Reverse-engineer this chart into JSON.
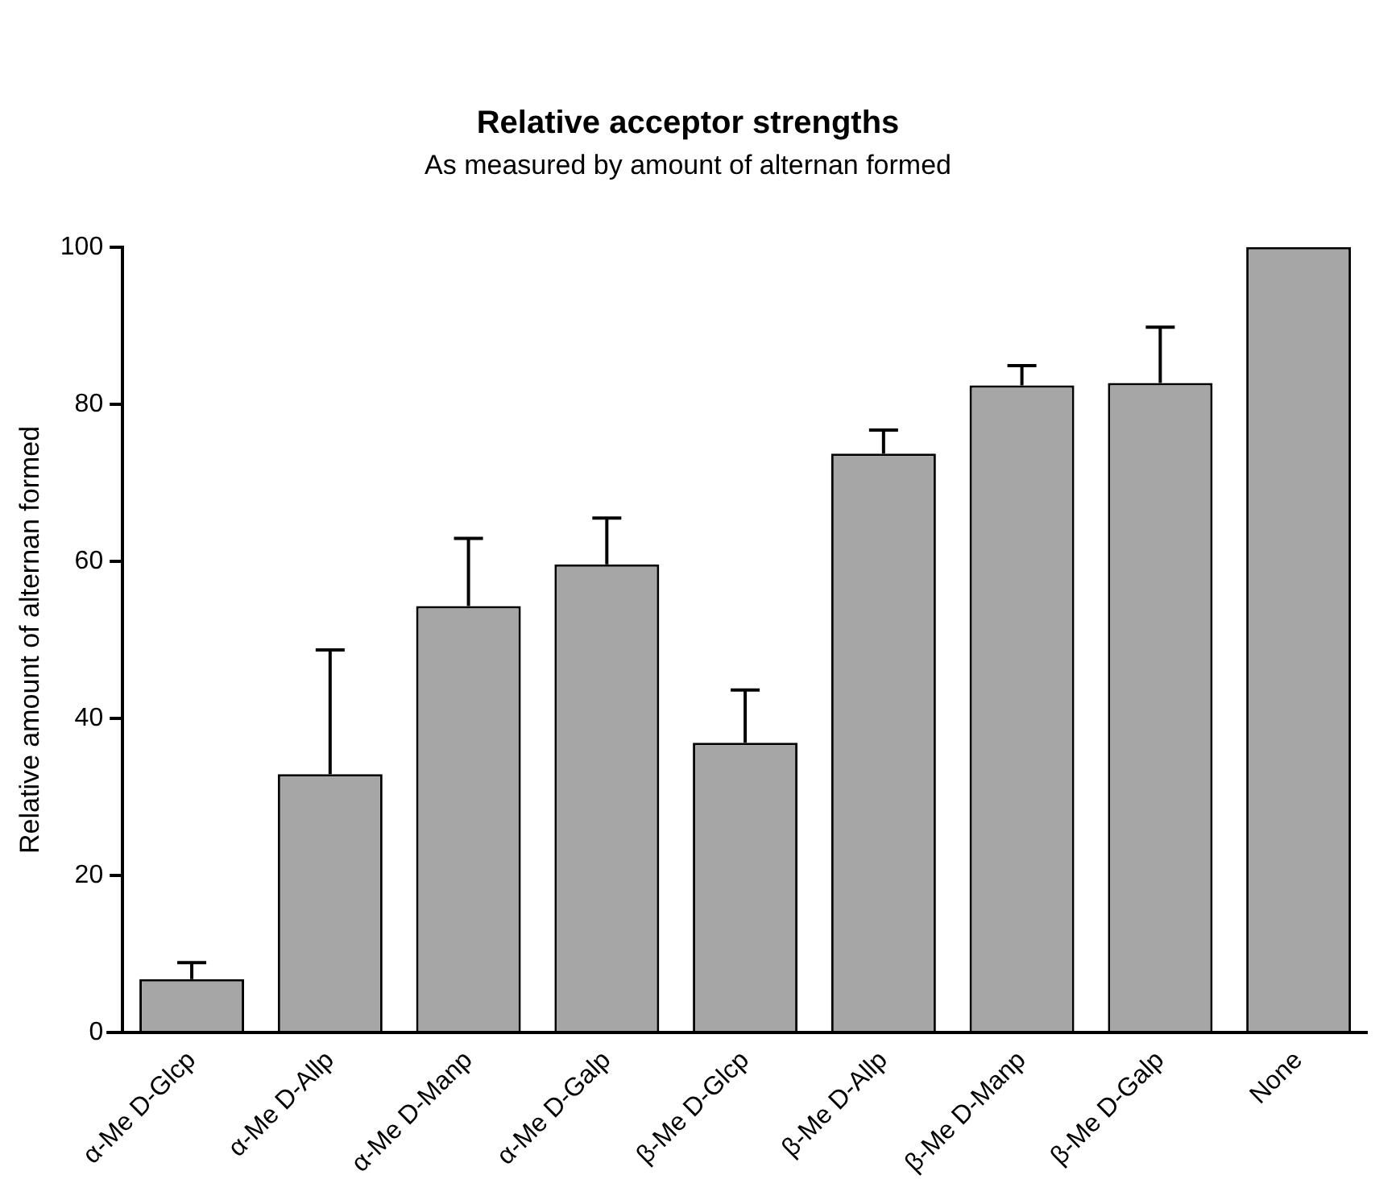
{
  "chart_data": {
    "type": "bar",
    "title": "Relative acceptor strengths",
    "subtitle": "As measured by amount of alternan formed",
    "ylabel": "Relative amount of alternan formed",
    "categories": [
      "α-Me D-Glcp",
      "α-Me D-Allp",
      "α-Me D-Manp",
      "α-Me D-Galp",
      "β-Me D-Glcp",
      "β-Me D-Allp",
      "β-Me D-Manp",
      "β-Me D-Galp",
      "None"
    ],
    "values": [
      6.8,
      32.9,
      54.3,
      59.6,
      36.9,
      73.7,
      82.4,
      82.7,
      100
    ],
    "errors": [
      [
        6.8,
        8.9
      ],
      [
        32.9,
        48.7
      ],
      [
        54.3,
        62.9
      ],
      [
        59.6,
        65.5
      ],
      [
        36.9,
        43.6
      ],
      [
        73.7,
        76.7
      ],
      [
        82.4,
        84.9
      ],
      [
        82.7,
        89.8
      ],
      null
    ],
    "color": "#a6a6a6",
    "ylim": [
      0,
      100
    ],
    "yticks": [
      0,
      20,
      40,
      60,
      80,
      100
    ],
    "grid": false,
    "legend": false
  }
}
